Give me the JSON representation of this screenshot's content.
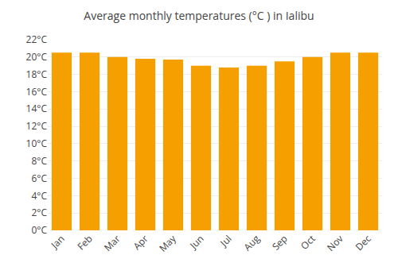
{
  "chart_data": {
    "type": "bar",
    "title": "Average monthly temperatures (°C ) in Ialibu",
    "categories": [
      "Jan",
      "Feb",
      "Mar",
      "Apr",
      "May",
      "Jun",
      "Jul",
      "Aug",
      "Sep",
      "Oct",
      "Nov",
      "Dec"
    ],
    "values": [
      20.5,
      20.5,
      20.0,
      19.8,
      19.7,
      19.0,
      18.8,
      19.0,
      19.5,
      20.0,
      20.5,
      20.5
    ],
    "color": "#F5A000",
    "ylim": [
      0,
      22
    ],
    "yticks": [
      {
        "value": 0,
        "label": "0°C"
      },
      {
        "value": 2,
        "label": "2°C"
      },
      {
        "value": 4,
        "label": "4°C"
      },
      {
        "value": 6,
        "label": "6°C"
      },
      {
        "value": 8,
        "label": "8°C"
      },
      {
        "value": 10,
        "label": "10°C"
      },
      {
        "value": 12,
        "label": "12°C"
      },
      {
        "value": 14,
        "label": "14°C"
      },
      {
        "value": 16,
        "label": "16°C"
      },
      {
        "value": 18,
        "label": "18°C"
      },
      {
        "value": 20,
        "label": "20°C"
      },
      {
        "value": 22,
        "label": "22°C"
      }
    ],
    "grid": true
  }
}
